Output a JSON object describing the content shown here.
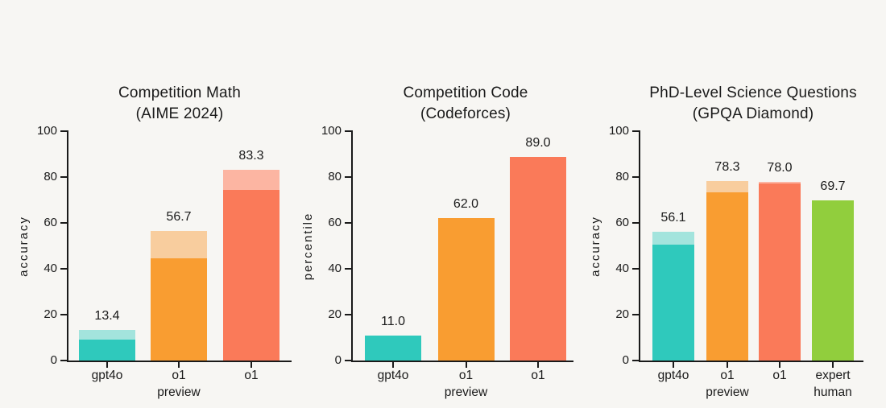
{
  "page": {
    "background": "#f7f6f3",
    "text_color": "#1a1a1a",
    "axis_color": "#1a1a1a"
  },
  "colors": {
    "teal": "#2fc9bc",
    "teal_light": "#a3e4dd",
    "orange": "#f99d31",
    "orange_light": "#f8cd9e",
    "coral": "#fa7a59",
    "coral_light": "#fcb5a2",
    "green": "#91ce3d"
  },
  "chart_data": [
    {
      "type": "bar",
      "title_lines": [
        "Competition Math",
        "(AIME 2024)"
      ],
      "ylabel": "accuracy",
      "xlabel": "",
      "ylim": [
        0,
        100
      ],
      "yticks": [
        0,
        20,
        40,
        60,
        80,
        100
      ],
      "grid": false,
      "legend": "none",
      "categories": [
        "gpt4o",
        "o1 preview",
        "o1"
      ],
      "bars": [
        {
          "category_lines": [
            "gpt4o"
          ],
          "value": 13.4,
          "value_label": "13.4",
          "solid_value": 9.3,
          "color": "teal",
          "light_color": "teal_light"
        },
        {
          "category_lines": [
            "o1",
            "preview"
          ],
          "value": 56.7,
          "value_label": "56.7",
          "solid_value": 44.6,
          "color": "orange",
          "light_color": "orange_light"
        },
        {
          "category_lines": [
            "o1"
          ],
          "value": 83.3,
          "value_label": "83.3",
          "solid_value": 74.4,
          "color": "coral",
          "light_color": "coral_light"
        }
      ]
    },
    {
      "type": "bar",
      "title_lines": [
        "Competition Code",
        "(Codeforces)"
      ],
      "ylabel": "percentile",
      "xlabel": "",
      "ylim": [
        0,
        100
      ],
      "yticks": [
        0,
        20,
        40,
        60,
        80,
        100
      ],
      "grid": false,
      "legend": "none",
      "categories": [
        "gpt4o",
        "o1 preview",
        "o1"
      ],
      "bars": [
        {
          "category_lines": [
            "gpt4o"
          ],
          "value": 11.0,
          "value_label": "11.0",
          "solid_value": 11.0,
          "color": "teal"
        },
        {
          "category_lines": [
            "o1",
            "preview"
          ],
          "value": 62.0,
          "value_label": "62.0",
          "solid_value": 62.0,
          "color": "orange"
        },
        {
          "category_lines": [
            "o1"
          ],
          "value": 89.0,
          "value_label": "89.0",
          "solid_value": 89.0,
          "color": "coral"
        }
      ]
    },
    {
      "type": "bar",
      "title_lines": [
        "PhD-Level Science Questions",
        "(GPQA Diamond)"
      ],
      "ylabel": "accuracy",
      "xlabel": "",
      "ylim": [
        0,
        100
      ],
      "yticks": [
        0,
        20,
        40,
        60,
        80,
        100
      ],
      "grid": false,
      "legend": "none",
      "categories": [
        "gpt4o",
        "o1 preview",
        "o1",
        "expert human"
      ],
      "bars": [
        {
          "category_lines": [
            "gpt4o"
          ],
          "value": 56.1,
          "value_label": "56.1",
          "solid_value": 50.6,
          "color": "teal",
          "light_color": "teal_light"
        },
        {
          "category_lines": [
            "o1",
            "preview"
          ],
          "value": 78.3,
          "value_label": "78.3",
          "solid_value": 73.3,
          "color": "orange",
          "light_color": "orange_light"
        },
        {
          "category_lines": [
            "o1"
          ],
          "value": 78.0,
          "value_label": "78.0",
          "solid_value": 77.3,
          "color": "coral",
          "light_color": "coral_light"
        },
        {
          "category_lines": [
            "expert",
            "human"
          ],
          "value": 69.7,
          "value_label": "69.7",
          "solid_value": 69.7,
          "color": "green"
        }
      ]
    }
  ]
}
